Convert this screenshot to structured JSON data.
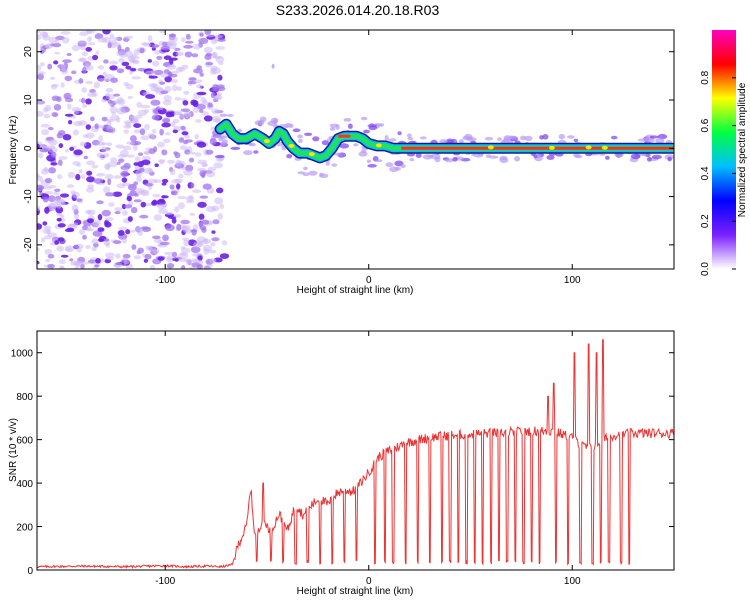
{
  "title": "S233.2026.014.20.18.R03",
  "chart_data": [
    {
      "type": "heatmap",
      "name": "spectrogram",
      "xlabel": "Height of straight line (km)",
      "ylabel": "Frequency (Hz)",
      "xlim": [
        -163,
        150
      ],
      "ylim": [
        -25,
        24.5
      ],
      "xticks": [
        -100,
        0,
        100
      ],
      "yticks": [
        -20,
        -10,
        0,
        10,
        20
      ],
      "noise_region_x": [
        -163,
        -72
      ],
      "signal_trace": [
        [
          -73,
          4
        ],
        [
          -70,
          5
        ],
        [
          -67,
          3
        ],
        [
          -64,
          2
        ],
        [
          -60,
          2
        ],
        [
          -56,
          3
        ],
        [
          -52,
          2
        ],
        [
          -49,
          1
        ],
        [
          -46,
          2
        ],
        [
          -44,
          3.5
        ],
        [
          -42,
          3
        ],
        [
          -40,
          1.5
        ],
        [
          -37,
          0
        ],
        [
          -34,
          -1
        ],
        [
          -30,
          -1
        ],
        [
          -27,
          -1.5
        ],
        [
          -24,
          -2
        ],
        [
          -21,
          -1.5
        ],
        [
          -18,
          0
        ],
        [
          -15,
          2
        ],
        [
          -12,
          2.5
        ],
        [
          -9,
          2.5
        ],
        [
          -6,
          2.5
        ],
        [
          -3,
          2
        ],
        [
          0,
          1
        ],
        [
          4,
          0.5
        ],
        [
          8,
          0.5
        ],
        [
          12,
          0
        ],
        [
          16,
          0
        ],
        [
          150,
          0
        ]
      ],
      "colorbar": {
        "label": "Normalized spectral amplitude",
        "range": [
          0.0,
          1.0
        ],
        "ticks": [
          "0.0",
          "0.2",
          "0.4",
          "0.6",
          "0.8"
        ],
        "stops": [
          "#ffffff",
          "#7a20ff",
          "#0000ff",
          "#00bfff",
          "#00ff40",
          "#ffff00",
          "#ff0000",
          "#ff00c0"
        ]
      }
    },
    {
      "type": "line",
      "name": "snr",
      "xlabel": "Height of straight line (km)",
      "ylabel": "SNR (10 * v/v)",
      "xlim": [
        -163,
        150
      ],
      "ylim": [
        0,
        1100
      ],
      "xticks": [
        -100,
        0,
        100
      ],
      "yticks": [
        0,
        200,
        400,
        600,
        800,
        1000
      ],
      "color": "#ee3333",
      "series": [
        {
          "name": "SNR",
          "points": [
            [
              -163,
              15
            ],
            [
              -140,
              18
            ],
            [
              -120,
              15
            ],
            [
              -100,
              20
            ],
            [
              -90,
              15
            ],
            [
              -80,
              18
            ],
            [
              -72,
              15
            ],
            [
              -67,
              25
            ],
            [
              -64,
              120
            ],
            [
              -60,
              200
            ],
            [
              -58,
              380
            ],
            [
              -56,
              160
            ],
            [
              -52,
              230
            ],
            [
              -48,
              180
            ],
            [
              -44,
              260
            ],
            [
              -40,
              180
            ],
            [
              -36,
              300
            ],
            [
              -32,
              250
            ],
            [
              -28,
              300
            ],
            [
              -24,
              330
            ],
            [
              -20,
              300
            ],
            [
              -16,
              350
            ],
            [
              -12,
              370
            ],
            [
              -8,
              360
            ],
            [
              -4,
              400
            ],
            [
              0,
              450
            ],
            [
              5,
              520
            ],
            [
              10,
              550
            ],
            [
              15,
              570
            ],
            [
              20,
              590
            ],
            [
              30,
              610
            ],
            [
              40,
              620
            ],
            [
              60,
              630
            ],
            [
              80,
              640
            ],
            [
              90,
              640
            ],
            [
              100,
              610
            ],
            [
              105,
              570
            ],
            [
              110,
              560
            ],
            [
              115,
              600
            ],
            [
              120,
              620
            ],
            [
              130,
              630
            ],
            [
              150,
              630
            ]
          ]
        }
      ],
      "spikes_up": [
        [
          -52,
          400
        ],
        [
          88,
          800
        ],
        [
          91,
          860
        ],
        [
          101,
          1000
        ],
        [
          108,
          1040
        ],
        [
          112,
          1000
        ],
        [
          115,
          1060
        ]
      ],
      "dropouts_x": [
        -55,
        -48,
        -42,
        -36,
        -30,
        -24,
        -18,
        -12,
        -6,
        3,
        8,
        12,
        18,
        24,
        30,
        36,
        40,
        44,
        48,
        52,
        56,
        60,
        64,
        68,
        72,
        76,
        80,
        84,
        88,
        92,
        98,
        104,
        110,
        114,
        118,
        124,
        128
      ]
    }
  ]
}
